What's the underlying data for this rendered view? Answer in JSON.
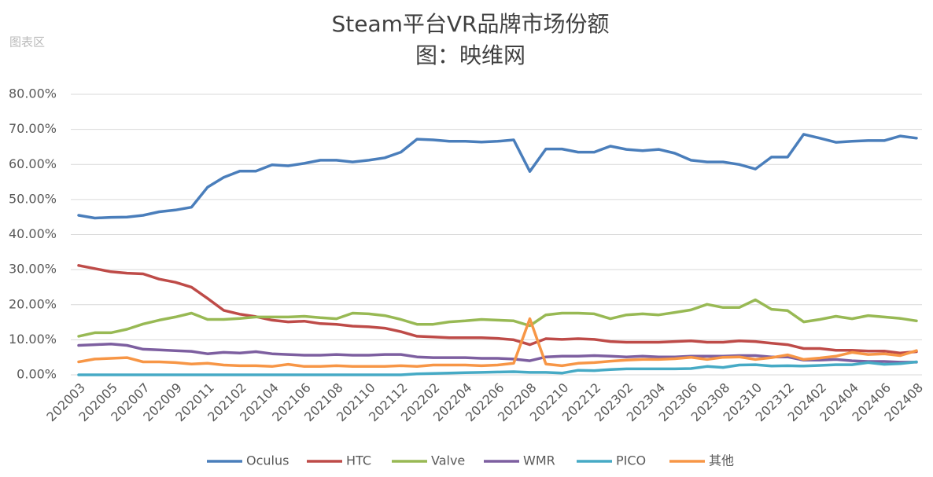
{
  "chart_data": {
    "type": "line",
    "title": "Steam平台VR品牌市场份额",
    "subtitle": "图：映维网",
    "watermark": "图表区",
    "categories": [
      "202003",
      null,
      "202005",
      null,
      "202007",
      null,
      "202009",
      null,
      "202011",
      null,
      "202102",
      null,
      "202104",
      null,
      "202106",
      null,
      "202108",
      null,
      "202110",
      null,
      "202112",
      null,
      "202202",
      null,
      "202204",
      null,
      "202206",
      null,
      "202208",
      null,
      "202210",
      null,
      "202212",
      null,
      "202302",
      null,
      "202304",
      null,
      "202306",
      null,
      "202308",
      null,
      "202310",
      null,
      "202312",
      null,
      "202402",
      null,
      "202404",
      null,
      "202406",
      null,
      "202408"
    ],
    "series": [
      {
        "name": "Oculus",
        "color": "#4a7ebb",
        "values": [
          45.5,
          44.7,
          44.9,
          45,
          45.5,
          46.5,
          47,
          47.8,
          53.5,
          56.3,
          58.1,
          58.1,
          59.9,
          59.6,
          60.3,
          61.2,
          61.2,
          60.7,
          61.2,
          61.9,
          63.5,
          67.2,
          67,
          66.6,
          66.6,
          66.4,
          66.6,
          67,
          58,
          64.4,
          64.4,
          63.5,
          63.5,
          65.2,
          64.3,
          63.9,
          64.3,
          63.2,
          61.2,
          60.7,
          60.7,
          60,
          58.7,
          62.1,
          62.1,
          68.6,
          67.5,
          66.3,
          66.6,
          66.8,
          66.8,
          68.1,
          67.5
        ]
      },
      {
        "name": "HTC",
        "color": "#be4b48",
        "values": [
          31.2,
          30.3,
          29.4,
          29,
          28.8,
          27.3,
          26.4,
          25,
          21.8,
          18.4,
          17.3,
          16.6,
          15.6,
          15.1,
          15.3,
          14.6,
          14.4,
          13.9,
          13.7,
          13.3,
          12.3,
          11,
          10.8,
          10.6,
          10.6,
          10.6,
          10.4,
          10,
          8.6,
          10.3,
          10.1,
          10.3,
          10.1,
          9.5,
          9.3,
          9.3,
          9.3,
          9.5,
          9.7,
          9.3,
          9.3,
          9.7,
          9.5,
          9,
          8.6,
          7.5,
          7.5,
          7,
          7,
          6.8,
          6.8,
          6.2,
          6.6
        ]
      },
      {
        "name": "Valve",
        "color": "#98b954",
        "values": [
          11,
          12,
          12,
          13,
          14.5,
          15.6,
          16.5,
          17.6,
          15.8,
          15.8,
          16.1,
          16.5,
          16.5,
          16.5,
          16.7,
          16.3,
          16,
          17.6,
          17.4,
          16.9,
          15.8,
          14.4,
          14.4,
          15.1,
          15.4,
          15.8,
          15.6,
          15.4,
          14,
          17.1,
          17.6,
          17.6,
          17.4,
          16,
          17.1,
          17.4,
          17.1,
          17.8,
          18.5,
          20.1,
          19.2,
          19.2,
          21.4,
          18.7,
          18.3,
          15.1,
          15.8,
          16.7,
          16,
          16.9,
          16.5,
          16.1,
          15.4
        ]
      },
      {
        "name": "WMR",
        "color": "#7d5fa0",
        "values": [
          8.4,
          8.6,
          8.8,
          8.4,
          7.3,
          7.1,
          6.9,
          6.7,
          6,
          6.4,
          6.2,
          6.6,
          6,
          5.8,
          5.6,
          5.6,
          5.8,
          5.6,
          5.6,
          5.8,
          5.8,
          5.1,
          4.9,
          4.9,
          4.9,
          4.7,
          4.7,
          4.5,
          4,
          5.1,
          5.3,
          5.3,
          5.5,
          5.3,
          5.1,
          5.3,
          5.1,
          5.1,
          5.3,
          5.3,
          5.3,
          5.5,
          5.5,
          5.1,
          5.1,
          4.2,
          4.2,
          4.4,
          4,
          3.8,
          3.8,
          3.6,
          3.6
        ]
      },
      {
        "name": "PICO",
        "color": "#46aac5",
        "values": [
          0,
          0,
          0,
          0,
          0,
          0,
          0,
          0,
          0,
          0,
          0,
          0,
          0,
          0,
          0,
          0,
          0,
          0,
          0,
          0,
          0,
          0.3,
          0.4,
          0.5,
          0.6,
          0.7,
          0.8,
          0.9,
          0.7,
          0.7,
          0.5,
          1.3,
          1.2,
          1.5,
          1.7,
          1.7,
          1.7,
          1.7,
          1.8,
          2.4,
          2.1,
          2.8,
          2.9,
          2.5,
          2.6,
          2.5,
          2.7,
          2.9,
          2.9,
          3.5,
          3,
          3.2,
          3.7
        ]
      },
      {
        "name": "其他",
        "color": "#f79646",
        "values": [
          3.7,
          4.5,
          4.7,
          4.9,
          3.7,
          3.7,
          3.5,
          3.1,
          3.3,
          2.8,
          2.6,
          2.6,
          2.4,
          3,
          2.4,
          2.4,
          2.6,
          2.4,
          2.4,
          2.4,
          2.6,
          2.4,
          2.8,
          2.8,
          2.8,
          2.6,
          2.8,
          3.3,
          16,
          3.1,
          2.6,
          3.3,
          3.5,
          3.9,
          4.2,
          4.4,
          4.4,
          4.6,
          5,
          4.4,
          5,
          5.1,
          4.4,
          4.9,
          5.7,
          4.4,
          4.8,
          5.3,
          6.4,
          5.8,
          6,
          5.5,
          6.9
        ]
      }
    ],
    "ylim": [
      0,
      80
    ],
    "yticks": [
      {
        "value": 0,
        "label": "0.00%"
      },
      {
        "value": 10,
        "label": "10.00%"
      },
      {
        "value": 20,
        "label": "20.00%"
      },
      {
        "value": 30,
        "label": "30.00%"
      },
      {
        "value": 40,
        "label": "40.00%"
      },
      {
        "value": 50,
        "label": "50.00%"
      },
      {
        "value": 60,
        "label": "60.00%"
      },
      {
        "value": 70,
        "label": "70.00%"
      },
      {
        "value": 80,
        "label": "80.00%"
      }
    ],
    "grid": true,
    "legend": "bottom"
  }
}
